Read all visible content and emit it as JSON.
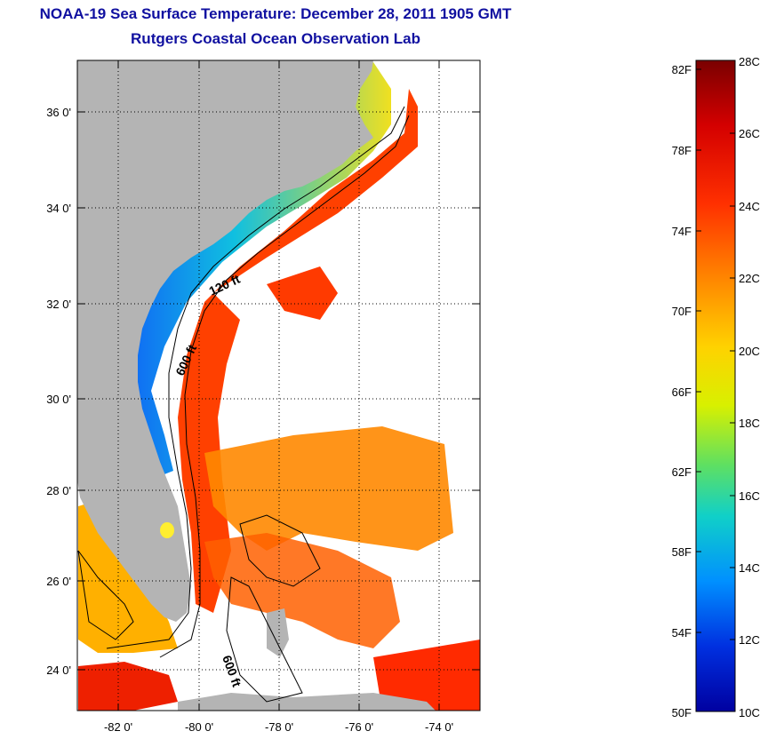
{
  "title": {
    "line1": "NOAA-19 Sea Surface Temperature:  December 28, 2011 1905 GMT",
    "line2": "Rutgers Coastal Ocean Observation Lab"
  },
  "map": {
    "lat_ticks": [
      "36 0'",
      "34 0'",
      "32 0'",
      "30 0'",
      "28 0'",
      "26 0'",
      "24 0'"
    ],
    "lon_ticks": [
      "-82 0'",
      "-80 0'",
      "-78 0'",
      "-76 0'",
      "-74 0'"
    ],
    "contours": [
      "120 ft",
      "600 ft",
      "600 ft"
    ]
  },
  "colorbar": {
    "fahrenheit": [
      "82F",
      "78F",
      "74F",
      "70F",
      "66F",
      "62F",
      "58F",
      "54F",
      "50F"
    ],
    "celsius": [
      "28C",
      "26C",
      "24C",
      "22C",
      "20C",
      "18C",
      "16C",
      "14C",
      "12C",
      "10C"
    ],
    "colors": [
      "#7a0000",
      "#d40000",
      "#ff3000",
      "#ff8a00",
      "#ffd200",
      "#d8f000",
      "#60e060",
      "#10d0c8",
      "#0090ff",
      "#0030e0",
      "#0000a0"
    ]
  }
}
